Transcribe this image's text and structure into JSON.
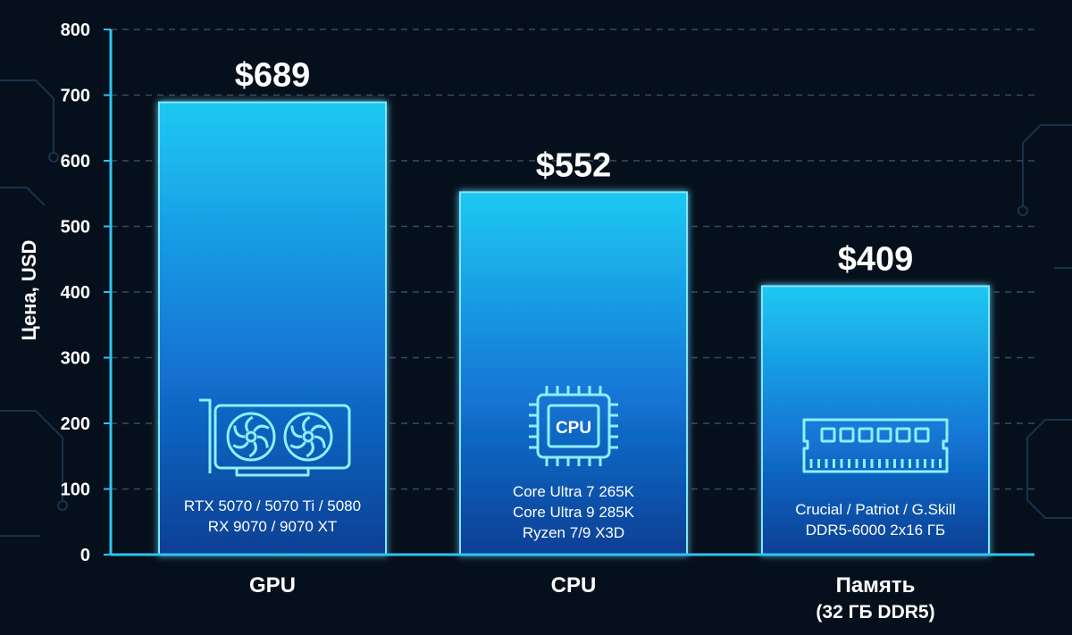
{
  "chart_data": {
    "type": "bar",
    "ylabel": "Цена, USD",
    "ylim": [
      0,
      800
    ],
    "yticks": [
      0,
      100,
      200,
      300,
      400,
      500,
      600,
      700,
      800
    ],
    "grid": true,
    "categories": [
      {
        "label": "GPU",
        "sublabel": "",
        "value": 689,
        "value_label": "$689",
        "icon": "gpu-card-icon",
        "details": [
          "RTX 5070 / 5070 Ti / 5080",
          "RX 9070 / 9070 XT"
        ]
      },
      {
        "label": "CPU",
        "sublabel": "",
        "value": 552,
        "value_label": "$552",
        "icon": "cpu-chip-icon",
        "icon_text": "CPU",
        "details": [
          "Core Ultra 7 265K",
          "Core Ultra 9 285K",
          "Ryzen 7/9 X3D"
        ]
      },
      {
        "label": "Память",
        "sublabel": "(32 ГБ DDR5)",
        "value": 409,
        "value_label": "$409",
        "icon": "ram-module-icon",
        "details": [
          "Crucial / Patriot / G.Skill",
          "DDR5-6000 2x16 ГБ"
        ]
      }
    ]
  },
  "colors": {
    "background": "#06101c",
    "bar_top": "#1ec8f2",
    "bar_bottom": "#0b3f94",
    "bar_edge": "#7ee6ff",
    "axis": "#2ec4ee",
    "grid": "#3a4a5c",
    "text": "#ffffff"
  }
}
